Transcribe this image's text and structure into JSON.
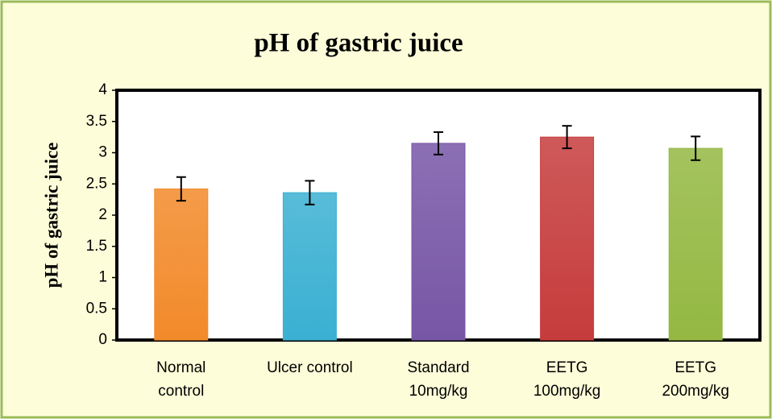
{
  "chart_data": {
    "type": "bar",
    "title": "pH of gastric juice",
    "ylabel": "pH of gastric juice",
    "categories": [
      "Normal\ncontrol",
      "Ulcer control",
      "Standard\n10mg/kg",
      "EETG\n100mg/kg",
      "EETG\n200mg/kg"
    ],
    "values": [
      2.42,
      2.36,
      3.15,
      3.25,
      3.07
    ],
    "errors": [
      0.19,
      0.19,
      0.18,
      0.18,
      0.19
    ],
    "colors": [
      "#f28a2a",
      "#3ab0d2",
      "#7756a6",
      "#c63c3c",
      "#94b842"
    ],
    "ylim": [
      0,
      4
    ],
    "yticks": [
      0,
      0.5,
      1,
      1.5,
      2,
      2.5,
      3,
      3.5,
      4
    ],
    "grid": false
  }
}
